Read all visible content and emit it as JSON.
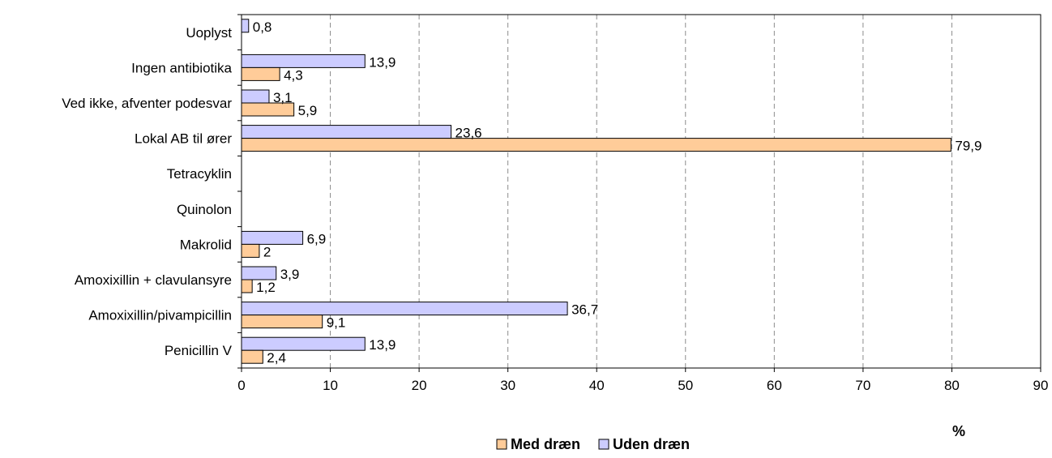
{
  "chart_data": {
    "type": "bar",
    "orientation": "horizontal",
    "categories": [
      "Penicillin V",
      "Amoxixillin/pivampicillin",
      "Amoxixillin + clavulansyre",
      "Makrolid",
      "Quinolon",
      "Tetracyklin",
      "Lokal AB til ører",
      "Ved ikke, afventer podesvar",
      "Ingen antibiotika",
      "Uoplyst"
    ],
    "series": [
      {
        "name": "Med dræn",
        "color": "#FFCC99",
        "values": [
          2.4,
          9.1,
          1.2,
          2,
          null,
          null,
          79.9,
          5.9,
          4.3,
          null
        ],
        "labels": [
          "2,4",
          "9,1",
          "1,2",
          "2",
          "",
          "",
          "79,9",
          "5,9",
          "4,3",
          ""
        ]
      },
      {
        "name": "Uden dræn",
        "color": "#CCCCFF",
        "values": [
          13.9,
          36.7,
          3.9,
          6.9,
          null,
          null,
          23.6,
          3.1,
          13.9,
          0.8
        ],
        "labels": [
          "13,9",
          "36,7",
          "3,9",
          "6,9",
          "",
          "",
          "23,6",
          "3,1",
          "13,9",
          "0,8"
        ]
      }
    ],
    "xlim": [
      0,
      90
    ],
    "x_ticks": [
      "0",
      "10",
      "20",
      "30",
      "40",
      "50",
      "60",
      "70",
      "80",
      "90"
    ],
    "xlabel": "%",
    "ylabel": "",
    "title": "",
    "grid": "vertical dashed",
    "legend_position": "bottom"
  }
}
